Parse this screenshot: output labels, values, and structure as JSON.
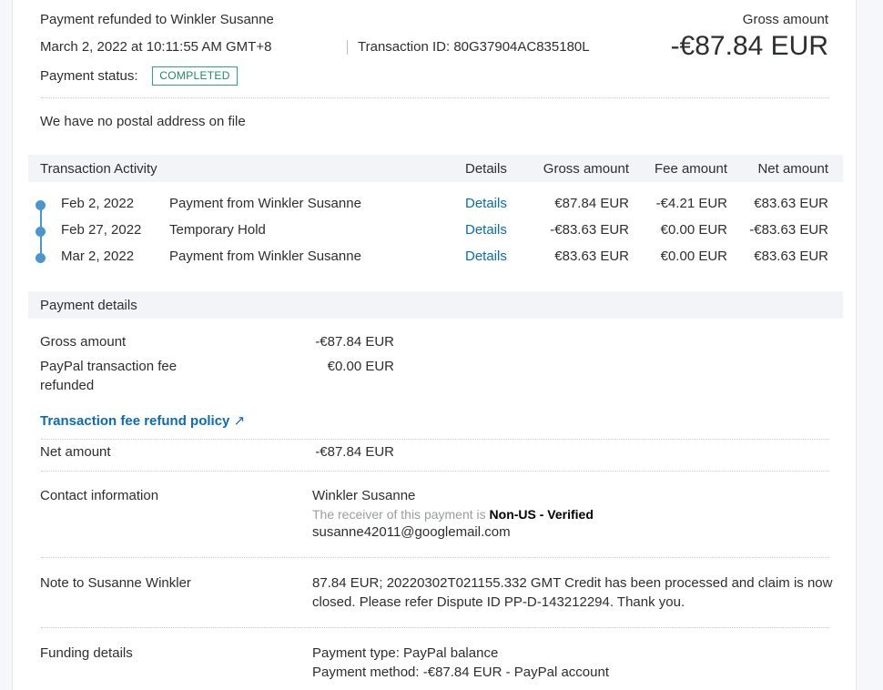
{
  "header": {
    "title": "Payment refunded to Winkler Susanne",
    "datetime": "March 2, 2022 at 10:11:55 AM GMT+8",
    "transaction_id": "Transaction ID: 80G37904AC835180L",
    "status_label": "Payment status:",
    "status": "COMPLETED",
    "gross_label": "Gross amount",
    "gross_value": "-€87.84 EUR"
  },
  "address": "We have no postal address on file",
  "activity": {
    "title": "Transaction Activity",
    "columns": [
      "Details",
      "Gross amount",
      "Fee amount",
      "Net amount"
    ],
    "rows": [
      {
        "date": "Feb 2, 2022",
        "desc": "Payment from Winkler Susanne",
        "details": "Details",
        "gross": "€87.84 EUR",
        "fee": "-€4.21 EUR",
        "net": "€83.63 EUR"
      },
      {
        "date": "Feb 27, 2022",
        "desc": "Temporary Hold",
        "details": "Details",
        "gross": "-€83.63 EUR",
        "fee": "€0.00 EUR",
        "net": "-€83.63 EUR"
      },
      {
        "date": "Mar 2, 2022",
        "desc": "Payment from Winkler Susanne",
        "details": "Details",
        "gross": "€83.63 EUR",
        "fee": "€0.00 EUR",
        "net": "€83.63 EUR"
      }
    ]
  },
  "payment_details": {
    "title": "Payment details",
    "gross_label": "Gross amount",
    "gross": "-€87.84 EUR",
    "fee_label_1": "PayPal transaction fee",
    "fee_label_2": "refunded",
    "fee": "€0.00 EUR",
    "policy_link": "Transaction fee refund policy",
    "net_label": "Net amount",
    "net": "-€87.84 EUR"
  },
  "contact": {
    "label": "Contact information",
    "name": "Winkler Susanne",
    "receiver_prefix": "The receiver of this payment is ",
    "receiver_status": "Non-US - Verified",
    "email": "susanne42011@googlemail.com"
  },
  "note": {
    "label": "Note to Susanne Winkler",
    "line1": "87.84 EUR; 20220302T021155.332 GMT Credit has been processed and claim is now",
    "line2": "closed. Please refer Dispute ID PP-D-143212294. Thank you."
  },
  "funding": {
    "label": "Funding details",
    "type": "Payment type: PayPal balance",
    "method": "Payment method: -€87.84 EUR - PayPal account"
  },
  "colors": {
    "link": "#0b6bb5",
    "status": "#27a97a",
    "timeline": "#4a96cf"
  }
}
